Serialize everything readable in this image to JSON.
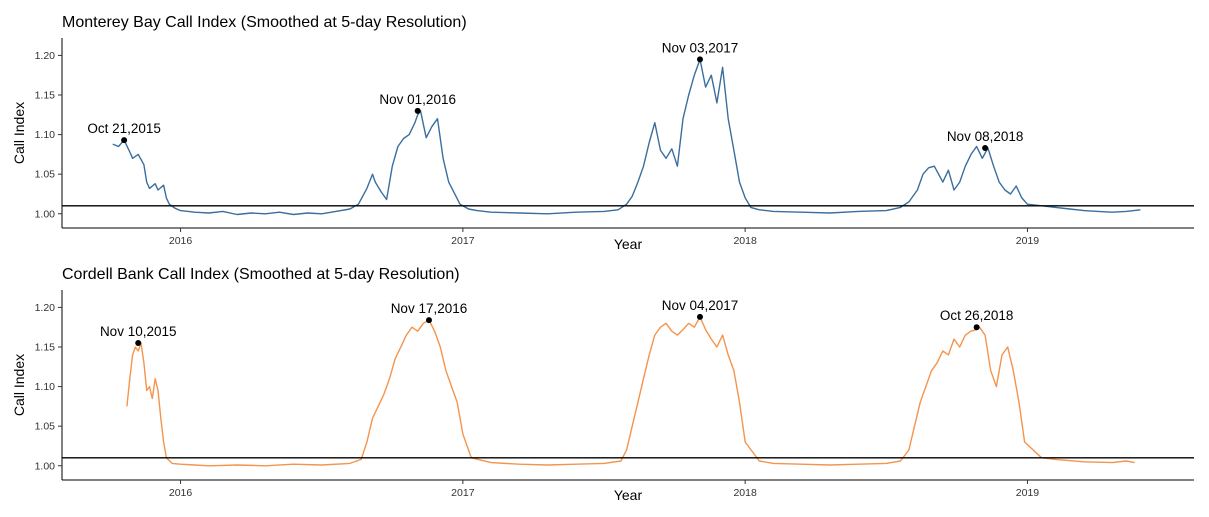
{
  "chart_data": [
    {
      "type": "line",
      "title": "Monterey Bay Call Index (Smoothed at 5-day Resolution)",
      "xlabel": "Year",
      "ylabel": "Call Index",
      "x_ticks": [
        "2016",
        "2017",
        "2018",
        "2019"
      ],
      "y_ticks": [
        "1.00",
        "1.05",
        "1.10",
        "1.15",
        "1.20"
      ],
      "xlim": [
        2015.58,
        2019.59
      ],
      "ylim": [
        0.982,
        1.222
      ],
      "reference_line": 1.01,
      "line_color": "#3a6e9e",
      "series": [
        {
          "x": [
            2015.76,
            2015.78,
            2015.8,
            2015.82,
            2015.83,
            2015.85,
            2015.87,
            2015.88,
            2015.89,
            2015.91,
            2015.92,
            2015.94,
            2015.95,
            2015.96,
            2015.98,
            2016.0,
            2016.05,
            2016.1,
            2016.15,
            2016.2,
            2016.25,
            2016.3,
            2016.35,
            2016.4,
            2016.45,
            2016.5,
            2016.55,
            2016.6,
            2016.63,
            2016.66,
            2016.68,
            2016.69,
            2016.71,
            2016.73,
            2016.75,
            2016.77,
            2016.79,
            2016.81,
            2016.83,
            2016.84,
            2016.85,
            2016.87,
            2016.89,
            2016.91,
            2016.93,
            2016.95,
            2016.97,
            2016.99,
            2017.02,
            2017.05,
            2017.1,
            2017.2,
            2017.3,
            2017.4,
            2017.5,
            2017.55,
            2017.58,
            2017.6,
            2017.62,
            2017.64,
            2017.66,
            2017.68,
            2017.7,
            2017.72,
            2017.74,
            2017.76,
            2017.78,
            2017.8,
            2017.82,
            2017.84,
            2017.86,
            2017.88,
            2017.9,
            2017.92,
            2017.94,
            2017.96,
            2017.98,
            2018.0,
            2018.02,
            2018.05,
            2018.1,
            2018.2,
            2018.3,
            2018.4,
            2018.5,
            2018.55,
            2018.58,
            2018.61,
            2018.63,
            2018.65,
            2018.67,
            2018.7,
            2018.72,
            2018.74,
            2018.76,
            2018.78,
            2018.8,
            2018.82,
            2018.84,
            2018.86,
            2018.88,
            2018.9,
            2018.92,
            2018.94,
            2018.96,
            2018.98,
            2019.0,
            2019.05,
            2019.1,
            2019.15,
            2019.2,
            2019.25,
            2019.3,
            2019.35,
            2019.4
          ],
          "y": [
            1.088,
            1.085,
            1.093,
            1.078,
            1.07,
            1.075,
            1.062,
            1.04,
            1.032,
            1.038,
            1.03,
            1.036,
            1.02,
            1.012,
            1.007,
            1.004,
            1.002,
            1.001,
            1.003,
            0.999,
            1.001,
            1.0,
            1.002,
            0.999,
            1.001,
            1.0,
            1.003,
            1.006,
            1.012,
            1.032,
            1.05,
            1.04,
            1.028,
            1.018,
            1.06,
            1.085,
            1.095,
            1.1,
            1.115,
            1.125,
            1.13,
            1.096,
            1.11,
            1.12,
            1.07,
            1.04,
            1.026,
            1.012,
            1.006,
            1.004,
            1.002,
            1.001,
            1.0,
            1.002,
            1.003,
            1.005,
            1.012,
            1.022,
            1.04,
            1.06,
            1.09,
            1.115,
            1.08,
            1.07,
            1.082,
            1.06,
            1.12,
            1.15,
            1.175,
            1.195,
            1.16,
            1.175,
            1.14,
            1.185,
            1.12,
            1.08,
            1.04,
            1.02,
            1.008,
            1.005,
            1.003,
            1.002,
            1.001,
            1.003,
            1.004,
            1.008,
            1.015,
            1.03,
            1.05,
            1.058,
            1.06,
            1.04,
            1.055,
            1.03,
            1.04,
            1.06,
            1.075,
            1.085,
            1.07,
            1.083,
            1.06,
            1.04,
            1.03,
            1.025,
            1.035,
            1.02,
            1.012,
            1.01,
            1.008,
            1.006,
            1.004,
            1.003,
            1.002,
            1.003,
            1.005
          ]
        }
      ],
      "annotations": [
        {
          "x": 2015.8,
          "y": 1.093,
          "label": "Oct 21,2015"
        },
        {
          "x": 2016.84,
          "y": 1.13,
          "label": "Nov 01,2016"
        },
        {
          "x": 2017.84,
          "y": 1.195,
          "label": "Nov 03,2017"
        },
        {
          "x": 2018.85,
          "y": 1.083,
          "label": "Nov 08,2018"
        }
      ]
    },
    {
      "type": "line",
      "title": "Cordell Bank Call Index (Smoothed at 5-day Resolution)",
      "xlabel": "Year",
      "ylabel": "Call Index",
      "x_ticks": [
        "2016",
        "2017",
        "2018",
        "2019"
      ],
      "y_ticks": [
        "1.00",
        "1.05",
        "1.10",
        "1.15",
        "1.20"
      ],
      "xlim": [
        2015.58,
        2019.59
      ],
      "ylim": [
        0.982,
        1.222
      ],
      "reference_line": 1.01,
      "line_color": "#f4944d",
      "series": [
        {
          "x": [
            2015.81,
            2015.82,
            2015.83,
            2015.84,
            2015.85,
            2015.86,
            2015.87,
            2015.88,
            2015.89,
            2015.9,
            2015.91,
            2015.92,
            2015.93,
            2015.94,
            2015.95,
            2015.97,
            2016.0,
            2016.05,
            2016.1,
            2016.2,
            2016.3,
            2016.4,
            2016.5,
            2016.6,
            2016.64,
            2016.66,
            2016.68,
            2016.7,
            2016.72,
            2016.74,
            2016.76,
            2016.78,
            2016.8,
            2016.82,
            2016.84,
            2016.86,
            2016.88,
            2016.9,
            2016.92,
            2016.94,
            2016.96,
            2016.98,
            2017.0,
            2017.03,
            2017.1,
            2017.2,
            2017.3,
            2017.4,
            2017.5,
            2017.56,
            2017.58,
            2017.6,
            2017.62,
            2017.64,
            2017.66,
            2017.68,
            2017.7,
            2017.72,
            2017.74,
            2017.76,
            2017.78,
            2017.8,
            2017.82,
            2017.84,
            2017.86,
            2017.88,
            2017.9,
            2017.92,
            2017.94,
            2017.96,
            2017.98,
            2018.0,
            2018.05,
            2018.1,
            2018.2,
            2018.3,
            2018.4,
            2018.5,
            2018.55,
            2018.58,
            2018.6,
            2018.62,
            2018.64,
            2018.66,
            2018.68,
            2018.7,
            2018.72,
            2018.74,
            2018.76,
            2018.78,
            2018.8,
            2018.82,
            2018.83,
            2018.85,
            2018.87,
            2018.89,
            2018.91,
            2018.93,
            2018.95,
            2018.97,
            2018.99,
            2019.05,
            2019.1,
            2019.2,
            2019.3,
            2019.35,
            2019.38
          ],
          "y": [
            1.075,
            1.11,
            1.14,
            1.15,
            1.145,
            1.155,
            1.13,
            1.095,
            1.1,
            1.085,
            1.11,
            1.095,
            1.06,
            1.03,
            1.01,
            1.003,
            1.002,
            1.001,
            1.0,
            1.001,
            1.0,
            1.002,
            1.001,
            1.003,
            1.008,
            1.03,
            1.06,
            1.075,
            1.09,
            1.11,
            1.135,
            1.15,
            1.165,
            1.175,
            1.17,
            1.18,
            1.184,
            1.17,
            1.15,
            1.12,
            1.1,
            1.08,
            1.04,
            1.01,
            1.004,
            1.002,
            1.001,
            1.002,
            1.003,
            1.006,
            1.02,
            1.05,
            1.08,
            1.11,
            1.14,
            1.165,
            1.175,
            1.18,
            1.17,
            1.165,
            1.172,
            1.18,
            1.175,
            1.188,
            1.172,
            1.16,
            1.15,
            1.165,
            1.14,
            1.12,
            1.08,
            1.03,
            1.006,
            1.003,
            1.002,
            1.001,
            1.002,
            1.003,
            1.006,
            1.02,
            1.05,
            1.08,
            1.1,
            1.12,
            1.13,
            1.145,
            1.14,
            1.16,
            1.15,
            1.165,
            1.17,
            1.172,
            1.175,
            1.165,
            1.12,
            1.1,
            1.14,
            1.15,
            1.12,
            1.08,
            1.03,
            1.01,
            1.008,
            1.005,
            1.004,
            1.006,
            1.004
          ]
        }
      ],
      "annotations": [
        {
          "x": 2015.85,
          "y": 1.155,
          "label": "Nov 10,2015"
        },
        {
          "x": 2016.88,
          "y": 1.184,
          "label": "Nov 17,2016"
        },
        {
          "x": 2017.84,
          "y": 1.188,
          "label": "Nov 04,2017"
        },
        {
          "x": 2018.82,
          "y": 1.175,
          "label": "Oct 26,2018"
        }
      ]
    }
  ]
}
